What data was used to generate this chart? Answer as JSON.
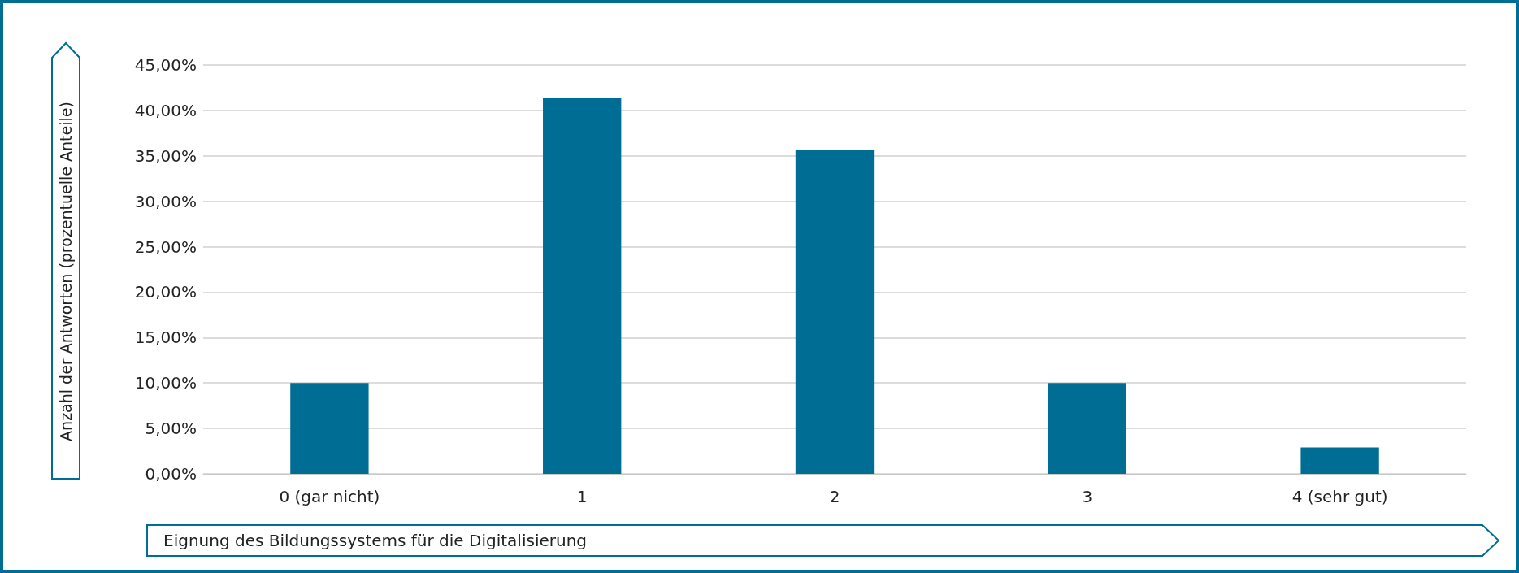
{
  "chart_data": {
    "type": "bar",
    "xlabel": "Eignung des Bildungssystems für die Digitalisierung",
    "ylabel": "Anzahl der Antworten (prozentuelle Anteile)",
    "categories": [
      "0 (gar nicht)",
      "1",
      "2",
      "3",
      "4 (sehr gut)"
    ],
    "values": [
      10,
      41.4,
      35.7,
      10,
      2.9
    ],
    "color": "#006e94",
    "ylim": [
      0,
      45
    ],
    "yticks": [
      {
        "value": 0,
        "label": "0,00%"
      },
      {
        "value": 5,
        "label": "5,00%"
      },
      {
        "value": 10,
        "label": "10,00%"
      },
      {
        "value": 15,
        "label": "15,00%"
      },
      {
        "value": 20,
        "label": "20,00%"
      },
      {
        "value": 25,
        "label": "25,00%"
      },
      {
        "value": 30,
        "label": "30,00%"
      },
      {
        "value": 35,
        "label": "35,00%"
      },
      {
        "value": 40,
        "label": "40,00%"
      },
      {
        "value": 45,
        "label": "45,00%"
      }
    ],
    "grid": "y"
  }
}
